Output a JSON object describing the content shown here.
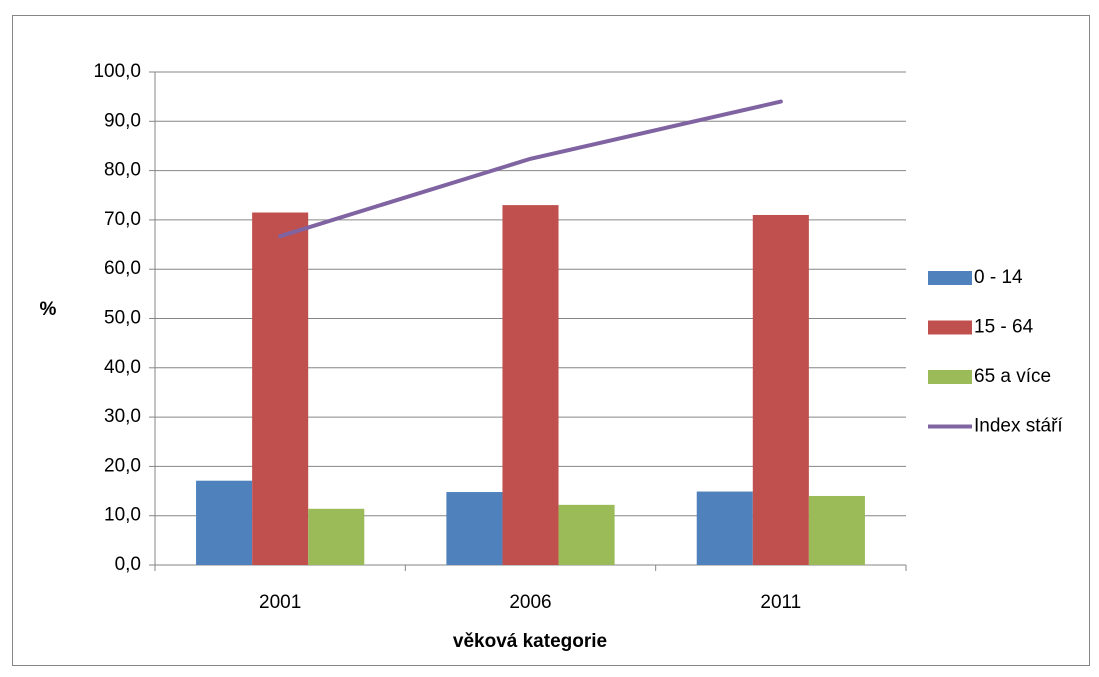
{
  "chart_data": {
    "type": "bar_line",
    "categories": [
      "2001",
      "2006",
      "2011"
    ],
    "series": [
      {
        "name": "0 - 14",
        "color": "#4f81bd",
        "type": "bar",
        "values": [
          17.1,
          14.8,
          14.9
        ]
      },
      {
        "name": "15 - 64",
        "color": "#c0504d",
        "type": "bar",
        "values": [
          71.5,
          73.0,
          71.0
        ]
      },
      {
        "name": "65 a více",
        "color": "#9bbb59",
        "type": "bar",
        "values": [
          11.4,
          12.2,
          14.0
        ]
      },
      {
        "name": "Index stáří",
        "color": "#8064a2",
        "type": "line",
        "values": [
          66.7,
          82.4,
          94.0
        ]
      }
    ],
    "ylabel": "%",
    "xlabel": "věková kategorie",
    "ylim": [
      0,
      100
    ],
    "yticks": [
      {
        "value": 0,
        "label": "0,0"
      },
      {
        "value": 10,
        "label": "10,0"
      },
      {
        "value": 20,
        "label": "20,0"
      },
      {
        "value": 30,
        "label": "30,0"
      },
      {
        "value": 40,
        "label": "40,0"
      },
      {
        "value": 50,
        "label": "50,0"
      },
      {
        "value": 60,
        "label": "60,0"
      },
      {
        "value": 70,
        "label": "70,0"
      },
      {
        "value": 80,
        "label": "80,0"
      },
      {
        "value": 90,
        "label": "90,0"
      },
      {
        "value": 100,
        "label": "100,0"
      }
    ],
    "grid": true,
    "legend": "right"
  }
}
